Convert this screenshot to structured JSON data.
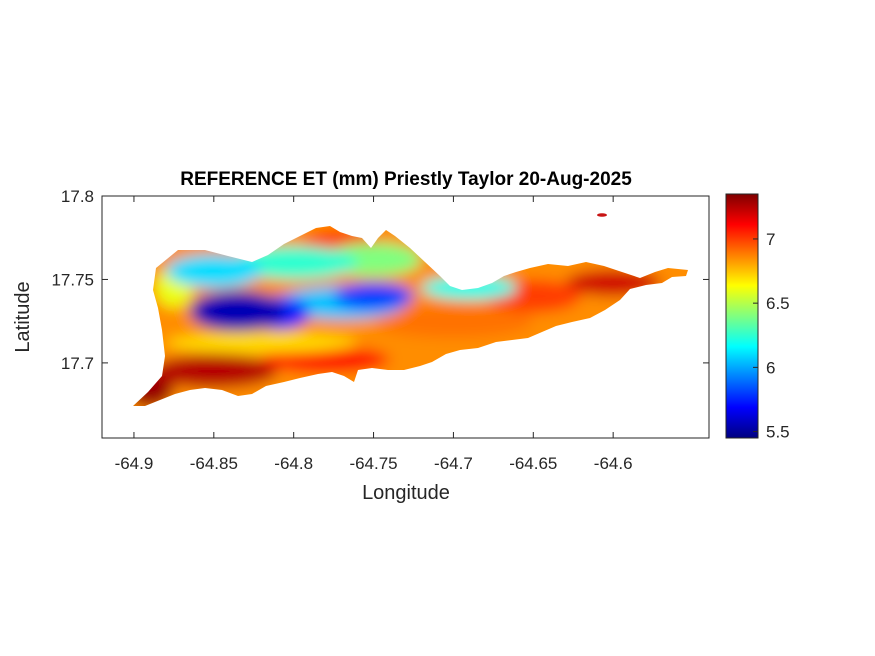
{
  "chart_data": {
    "type": "heatmap",
    "title": "REFERENCE ET (mm) Priestly Taylor 20-Aug-2025",
    "xlabel": "Longitude",
    "ylabel": "Latitude",
    "xlim": [
      -64.92,
      -64.54
    ],
    "ylim": [
      17.655,
      17.8
    ],
    "xticks": [
      -64.9,
      -64.85,
      -64.8,
      -64.75,
      -64.7,
      -64.65,
      -64.6
    ],
    "xtick_labels": [
      "-64.9",
      "-64.85",
      "-64.8",
      "-64.75",
      "-64.7",
      "-64.65",
      "-64.6"
    ],
    "yticks": [
      17.7,
      17.75,
      17.8
    ],
    "ytick_labels": [
      "17.7",
      "17.75",
      "17.8"
    ],
    "colorbar": {
      "colormap": "jet",
      "range": [
        5.45,
        7.35
      ],
      "ticks": [
        5.5,
        6,
        6.5,
        7
      ],
      "tick_labels": [
        "5.5",
        "6",
        "6.5",
        "7"
      ],
      "location": "right"
    },
    "field_regions": [
      {
        "lon": -64.835,
        "lat": 17.731,
        "value": 5.55
      },
      {
        "lon": -64.81,
        "lat": 17.73,
        "value": 5.75
      },
      {
        "lon": -64.75,
        "lat": 17.74,
        "value": 5.8
      },
      {
        "lon": -64.77,
        "lat": 17.736,
        "value": 6.05
      },
      {
        "lon": -64.69,
        "lat": 17.745,
        "value": 6.2
      },
      {
        "lon": -64.85,
        "lat": 17.755,
        "value": 6.1
      },
      {
        "lon": -64.8,
        "lat": 17.76,
        "value": 6.25
      },
      {
        "lon": -64.75,
        "lat": 17.762,
        "value": 6.4
      },
      {
        "lon": -64.875,
        "lat": 17.745,
        "value": 6.6
      },
      {
        "lon": -64.82,
        "lat": 17.712,
        "value": 6.7
      },
      {
        "lon": -64.7,
        "lat": 17.725,
        "value": 6.9
      },
      {
        "lon": -64.65,
        "lat": 17.74,
        "value": 7.0
      },
      {
        "lon": -64.6,
        "lat": 17.748,
        "value": 7.2
      },
      {
        "lon": -64.85,
        "lat": 17.695,
        "value": 7.25
      },
      {
        "lon": -64.78,
        "lat": 17.702,
        "value": 7.1
      },
      {
        "lon": -64.77,
        "lat": 17.77,
        "value": 7.0
      },
      {
        "lon": -64.89,
        "lat": 17.685,
        "value": 7.3
      }
    ]
  },
  "colors": {
    "axis": "#262626",
    "background": "#ffffff"
  }
}
